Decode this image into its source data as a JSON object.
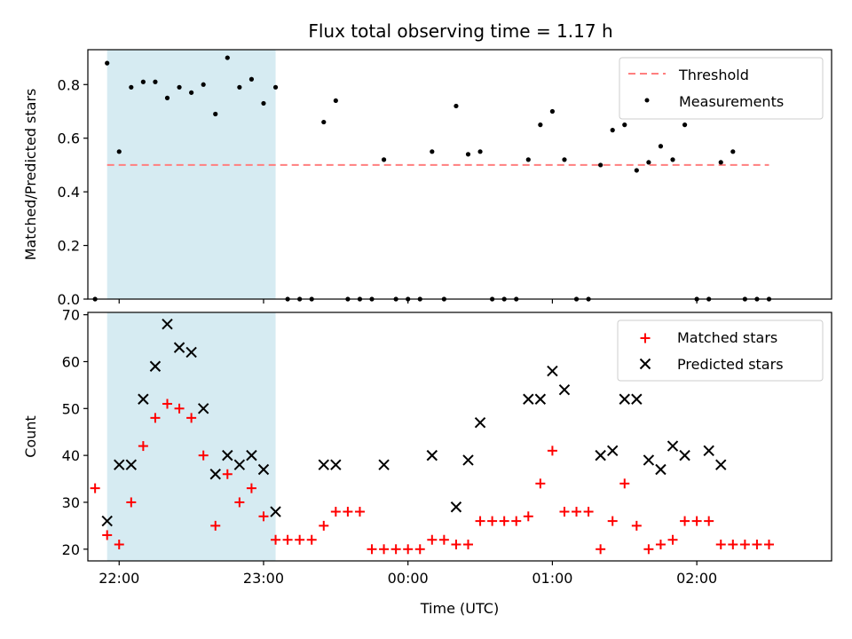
{
  "chart_data": {
    "title": "Flux total observing time = 1.17 h",
    "xlabel": "Time (UTC)",
    "x_tick_labels": [
      "22:00",
      "23:00",
      "00:00",
      "01:00",
      "02:00"
    ],
    "x_ticks": [
      "22:00",
      "23:00",
      "00:00",
      "01:00",
      "02:00"
    ],
    "xlim": [
      "21:47",
      "02:56"
    ],
    "shaded_interval": {
      "start": "21:55",
      "end": "23:05",
      "color": "#add8e6"
    },
    "panels": [
      {
        "type": "scatter",
        "ylabel": "Matched/Predicted stars",
        "ylim": [
          0,
          0.93
        ],
        "y_ticks": [
          0.0,
          0.2,
          0.4,
          0.6,
          0.8
        ],
        "y_tick_labels": [
          "0.0",
          "0.2",
          "0.4",
          "0.6",
          "0.8"
        ],
        "legend": {
          "placement": "top-right",
          "entries": [
            "Threshold",
            "Measurements"
          ]
        },
        "threshold": {
          "name": "Threshold",
          "y": 0.5,
          "x_start": "21:55",
          "x_end": "02:30",
          "color": "#ff7f7f",
          "style": "dashed"
        },
        "series": [
          {
            "name": "Measurements",
            "color": "#000000",
            "marker": "dot",
            "x": [
              "21:50",
              "21:55",
              "22:00",
              "22:05",
              "22:10",
              "22:15",
              "22:20",
              "22:25",
              "22:30",
              "22:35",
              "22:40",
              "22:45",
              "22:50",
              "22:55",
              "23:00",
              "23:05",
              "23:10",
              "23:15",
              "23:20",
              "23:25",
              "23:30",
              "23:35",
              "23:40",
              "23:45",
              "23:50",
              "23:55",
              "00:00",
              "00:05",
              "00:10",
              "00:15",
              "00:20",
              "00:25",
              "00:30",
              "00:35",
              "00:40",
              "00:45",
              "00:50",
              "00:55",
              "01:00",
              "01:05",
              "01:10",
              "01:15",
              "01:20",
              "01:25",
              "01:30",
              "01:35",
              "01:40",
              "01:45",
              "01:50",
              "01:55",
              "02:00",
              "02:05",
              "02:10",
              "02:15",
              "02:20",
              "02:25",
              "02:30"
            ],
            "y": [
              0.0,
              0.88,
              0.55,
              0.79,
              0.81,
              0.81,
              0.75,
              0.79,
              0.77,
              0.8,
              0.69,
              0.9,
              0.79,
              0.82,
              0.73,
              0.79,
              0.0,
              0.0,
              0.0,
              0.66,
              0.74,
              0.0,
              0.0,
              0.0,
              0.52,
              0.0,
              0.0,
              0.0,
              0.55,
              0.0,
              0.72,
              0.54,
              0.55,
              0.0,
              0.0,
              0.0,
              0.52,
              0.65,
              0.7,
              0.52,
              0.0,
              0.0,
              0.5,
              0.63,
              0.65,
              0.48,
              0.51,
              0.57,
              0.52,
              0.65,
              0.0,
              0.0,
              0.51,
              0.55,
              0.0,
              0.0,
              0.0
            ]
          }
        ]
      },
      {
        "type": "scatter",
        "ylabel": "Count",
        "ylim": [
          17.5,
          70.5
        ],
        "y_ticks": [
          20,
          30,
          40,
          50,
          60,
          70
        ],
        "y_tick_labels": [
          "20",
          "30",
          "40",
          "50",
          "60",
          "70"
        ],
        "legend": {
          "placement": "top-right",
          "entries": [
            "Matched stars",
            "Predicted stars"
          ]
        },
        "series": [
          {
            "name": "Matched stars",
            "color": "#ff0000",
            "marker": "plus",
            "x": [
              "21:50",
              "21:55",
              "22:00",
              "22:05",
              "22:10",
              "22:15",
              "22:20",
              "22:25",
              "22:30",
              "22:35",
              "22:40",
              "22:45",
              "22:50",
              "22:55",
              "23:00",
              "23:05",
              "23:10",
              "23:15",
              "23:20",
              "23:25",
              "23:30",
              "23:35",
              "23:40",
              "23:45",
              "23:50",
              "23:55",
              "00:00",
              "00:05",
              "00:10",
              "00:15",
              "00:20",
              "00:25",
              "00:30",
              "00:35",
              "00:40",
              "00:45",
              "00:50",
              "00:55",
              "01:00",
              "01:05",
              "01:10",
              "01:15",
              "01:20",
              "01:25",
              "01:30",
              "01:35",
              "01:40",
              "01:45",
              "01:50",
              "01:55",
              "02:00",
              "02:05",
              "02:10",
              "02:15",
              "02:20",
              "02:25",
              "02:30"
            ],
            "y": [
              33,
              23,
              21,
              30,
              42,
              48,
              51,
              50,
              48,
              40,
              25,
              36,
              30,
              33,
              27,
              22,
              22,
              22,
              22,
              25,
              28,
              28,
              28,
              20,
              20,
              20,
              20,
              20,
              22,
              22,
              21,
              21,
              26,
              26,
              26,
              26,
              27,
              34,
              41,
              28,
              28,
              28,
              20,
              26,
              34,
              25,
              20,
              21,
              22,
              26,
              26,
              26,
              21,
              21,
              21,
              21,
              21
            ]
          },
          {
            "name": "Predicted stars",
            "color": "#000000",
            "marker": "x",
            "x": [
              "21:55",
              "22:00",
              "22:05",
              "22:10",
              "22:15",
              "22:20",
              "22:25",
              "22:30",
              "22:35",
              "22:40",
              "22:45",
              "22:50",
              "22:55",
              "23:00",
              "23:05",
              "23:25",
              "23:30",
              "23:50",
              "00:10",
              "00:20",
              "00:25",
              "00:30",
              "00:50",
              "00:55",
              "01:00",
              "01:05",
              "01:20",
              "01:25",
              "01:30",
              "01:35",
              "01:40",
              "01:45",
              "01:50",
              "01:55",
              "02:05",
              "02:10"
            ],
            "y": [
              26,
              38,
              38,
              52,
              59,
              68,
              63,
              62,
              50,
              36,
              40,
              38,
              40,
              37,
              28,
              38,
              38,
              38,
              40,
              29,
              39,
              47,
              52,
              52,
              58,
              54,
              40,
              41,
              52,
              52,
              39,
              37,
              42,
              40,
              41,
              38
            ]
          }
        ]
      }
    ]
  }
}
